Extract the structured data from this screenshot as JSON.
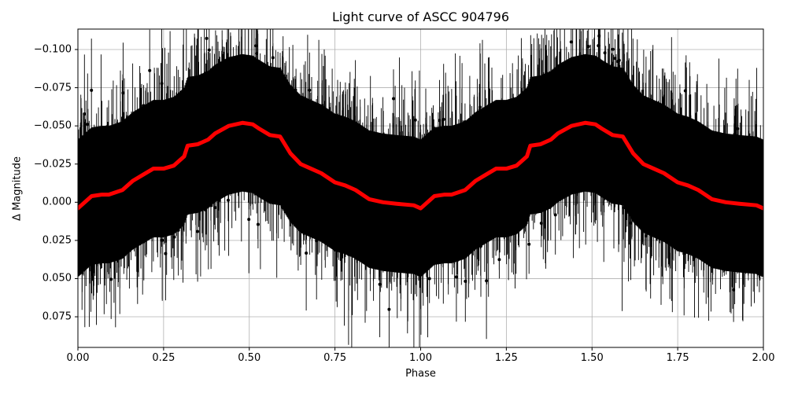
{
  "chart_data": {
    "type": "line",
    "title": "Light curve of ASCC 904796",
    "xlabel": "Phase",
    "ylabel": "Δ Magnitude",
    "xlim": [
      0.0,
      2.0
    ],
    "ylim": [
      0.095,
      -0.113
    ],
    "y_inverted": true,
    "grid": true,
    "legend": null,
    "x_ticks": [
      "0.00",
      "0.25",
      "0.50",
      "0.75",
      "1.00",
      "1.25",
      "1.50",
      "1.75",
      "2.00"
    ],
    "y_ticks": [
      "−0.100",
      "−0.075",
      "−0.050",
      "−0.025",
      "0.000",
      "0.025",
      "0.050",
      "0.075"
    ],
    "series": [
      {
        "name": "observations",
        "style": "black points with vertical error bars",
        "color": "#000000",
        "description": "dense scatter spanning roughly -0.11 to +0.095 magnitude at all phases, following the sinusoidal trend"
      },
      {
        "name": "binned mean",
        "style": "thick red line",
        "color": "#ff0000",
        "x": [
          0.0,
          0.04,
          0.07,
          0.09,
          0.13,
          0.16,
          0.19,
          0.22,
          0.25,
          0.28,
          0.31,
          0.32,
          0.35,
          0.38,
          0.4,
          0.44,
          0.48,
          0.51,
          0.53,
          0.56,
          0.59,
          0.62,
          0.65,
          0.68,
          0.71,
          0.75,
          0.78,
          0.81,
          0.85,
          0.89,
          0.93,
          0.98,
          1.0,
          1.04,
          1.07,
          1.09,
          1.13,
          1.16,
          1.19,
          1.22,
          1.25,
          1.28,
          1.31,
          1.32,
          1.35,
          1.38,
          1.4,
          1.44,
          1.48,
          1.51,
          1.53,
          1.56,
          1.59,
          1.62,
          1.65,
          1.68,
          1.71,
          1.75,
          1.78,
          1.81,
          1.85,
          1.89,
          1.93,
          1.98,
          2.0
        ],
        "y": [
          0.004,
          -0.004,
          -0.005,
          -0.005,
          -0.008,
          -0.014,
          -0.018,
          -0.022,
          -0.022,
          -0.024,
          -0.03,
          -0.037,
          -0.038,
          -0.041,
          -0.045,
          -0.05,
          -0.052,
          -0.051,
          -0.048,
          -0.044,
          -0.043,
          -0.032,
          -0.025,
          -0.022,
          -0.019,
          -0.013,
          -0.011,
          -0.008,
          -0.002,
          0.0,
          0.001,
          0.002,
          0.004,
          -0.004,
          -0.005,
          -0.005,
          -0.008,
          -0.014,
          -0.018,
          -0.022,
          -0.022,
          -0.024,
          -0.03,
          -0.037,
          -0.038,
          -0.041,
          -0.045,
          -0.05,
          -0.052,
          -0.051,
          -0.048,
          -0.044,
          -0.043,
          -0.032,
          -0.025,
          -0.022,
          -0.019,
          -0.013,
          -0.011,
          -0.008,
          -0.002,
          0.0,
          0.001,
          0.002,
          0.004
        ]
      }
    ]
  }
}
